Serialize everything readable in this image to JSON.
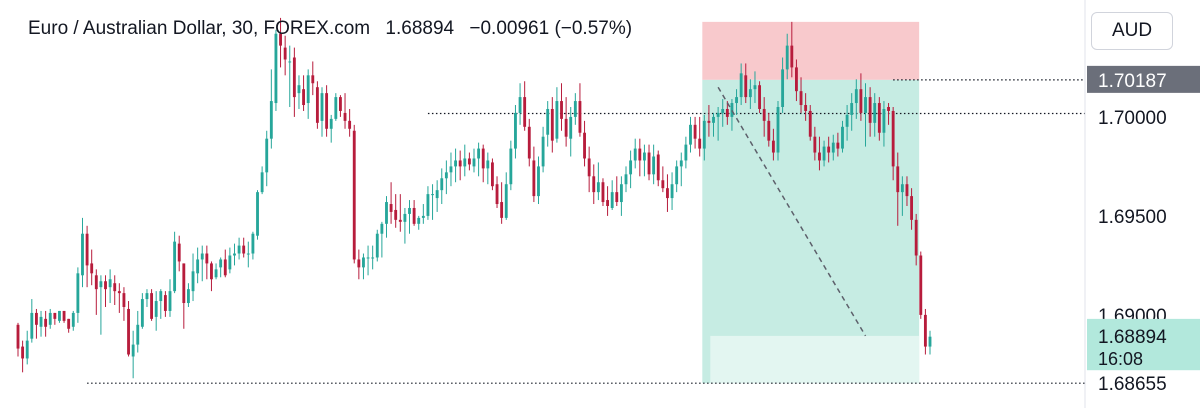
{
  "header": {
    "symbol": "Euro / Australian Dollar, 30, FOREX.com",
    "price": "1.68894",
    "change": "−0.00961 (−0.57%)"
  },
  "currency_button": "AUD",
  "colors": {
    "up": "#26a69a",
    "down": "#b71c3c",
    "stop_zone": "#f8c9cc",
    "target_zone": "#c6ece3",
    "tag_dark": "#6b6f7a",
    "tag_current": "#b2e8dc"
  },
  "chart_data": {
    "type": "candlestick",
    "timeframe": "30",
    "y_ticks": [
      1.7,
      1.695,
      1.69
    ],
    "y_tick_labels": [
      "1.70000",
      "1.69500",
      "1.69000"
    ],
    "ylim": [
      1.6855,
      1.7055
    ],
    "price_tags": [
      {
        "label": "1.70187",
        "value": 1.70187,
        "style": "dark"
      },
      {
        "label": "1.68894",
        "value": 1.68894,
        "style": "current",
        "countdown": "16:08"
      },
      {
        "label": "1.68655",
        "value": 1.68655,
        "style": "plain"
      }
    ],
    "horizontal_lines": [
      {
        "value": 1.70017,
        "from_index": 89
      },
      {
        "value": 1.68655,
        "from_index": 15
      },
      {
        "value": 1.70187,
        "from_index": 190
      }
    ],
    "position": {
      "type": "short",
      "start_index": 149,
      "end_index": 190,
      "entry": 1.70187,
      "stop": 1.7048,
      "target": 1.68655,
      "current": 1.68894
    },
    "trend_line": {
      "from_index": 152,
      "from_value": 1.7015,
      "to_index": 184,
      "to_value": 1.68894
    },
    "ohlc": [
      [
        1.6895,
        1.6896,
        1.6879,
        1.6883
      ],
      [
        1.6884,
        1.6887,
        1.6871,
        1.6878
      ],
      [
        1.6878,
        1.6892,
        1.6875,
        1.6887
      ],
      [
        1.6888,
        1.6908,
        1.6886,
        1.6901
      ],
      [
        1.6901,
        1.6903,
        1.6888,
        1.6895
      ],
      [
        1.6894,
        1.6902,
        1.6889,
        1.6899
      ],
      [
        1.6898,
        1.6902,
        1.6889,
        1.6894
      ],
      [
        1.6895,
        1.6903,
        1.6893,
        1.6901
      ],
      [
        1.6901,
        1.6901,
        1.6895,
        1.6898
      ],
      [
        1.6897,
        1.6902,
        1.6896,
        1.6902
      ],
      [
        1.6902,
        1.6902,
        1.6896,
        1.6897
      ],
      [
        1.6898,
        1.6898,
        1.6891,
        1.6893
      ],
      [
        1.6894,
        1.6902,
        1.6892,
        1.6901
      ],
      [
        1.6901,
        1.6924,
        1.6896,
        1.6921
      ],
      [
        1.692,
        1.6949,
        1.6914,
        1.6941
      ],
      [
        1.6941,
        1.6945,
        1.6914,
        1.6925
      ],
      [
        1.6926,
        1.6933,
        1.6915,
        1.6921
      ],
      [
        1.692,
        1.6923,
        1.69,
        1.6913
      ],
      [
        1.6914,
        1.692,
        1.689,
        1.6917
      ],
      [
        1.6917,
        1.692,
        1.6904,
        1.6913
      ],
      [
        1.6914,
        1.6923,
        1.6906,
        1.6918
      ],
      [
        1.6916,
        1.692,
        1.6905,
        1.6912
      ],
      [
        1.6912,
        1.6916,
        1.6901,
        1.6911
      ],
      [
        1.6911,
        1.6914,
        1.6897,
        1.6904
      ],
      [
        1.6903,
        1.6907,
        1.6879,
        1.688
      ],
      [
        1.6879,
        1.6892,
        1.6868,
        1.6885
      ],
      [
        1.6885,
        1.6902,
        1.6881,
        1.6895
      ],
      [
        1.6894,
        1.6911,
        1.6893,
        1.6908
      ],
      [
        1.6908,
        1.6913,
        1.6904,
        1.6911
      ],
      [
        1.6911,
        1.6913,
        1.6897,
        1.6898
      ],
      [
        1.6899,
        1.6912,
        1.6892,
        1.6907
      ],
      [
        1.6907,
        1.6913,
        1.6898,
        1.6912
      ],
      [
        1.691,
        1.6912,
        1.6899,
        1.6902
      ],
      [
        1.6902,
        1.6918,
        1.6899,
        1.6912
      ],
      [
        1.6912,
        1.6942,
        1.6911,
        1.6937
      ],
      [
        1.6936,
        1.694,
        1.6922,
        1.6927
      ],
      [
        1.6926,
        1.6926,
        1.6893,
        1.6906
      ],
      [
        1.6906,
        1.6916,
        1.6904,
        1.6913
      ],
      [
        1.6912,
        1.6931,
        1.6907,
        1.6922
      ],
      [
        1.6921,
        1.6934,
        1.6916,
        1.6928
      ],
      [
        1.6928,
        1.6935,
        1.6917,
        1.6931
      ],
      [
        1.6931,
        1.6935,
        1.6918,
        1.6926
      ],
      [
        1.6926,
        1.6927,
        1.6912,
        1.6918
      ],
      [
        1.6919,
        1.6926,
        1.6918,
        1.6923
      ],
      [
        1.6924,
        1.6929,
        1.6919,
        1.6928
      ],
      [
        1.6928,
        1.6933,
        1.6919,
        1.692
      ],
      [
        1.6923,
        1.6934,
        1.6921,
        1.693
      ],
      [
        1.693,
        1.6936,
        1.6925,
        1.6931
      ],
      [
        1.6931,
        1.6939,
        1.6928,
        1.6935
      ],
      [
        1.6935,
        1.6939,
        1.6929,
        1.6931
      ],
      [
        1.6931,
        1.6937,
        1.6924,
        1.6931
      ],
      [
        1.6931,
        1.6942,
        1.6928,
        1.6941
      ],
      [
        1.694,
        1.6963,
        1.6938,
        1.6962
      ],
      [
        1.6962,
        1.6975,
        1.6961,
        1.6972
      ],
      [
        1.6972,
        1.6993,
        1.6965,
        1.6989
      ],
      [
        1.6989,
        1.7024,
        1.6984,
        1.7008
      ],
      [
        1.7007,
        1.7044,
        1.7003,
        1.7042
      ],
      [
        1.7042,
        1.705,
        1.7025,
        1.7036
      ],
      [
        1.7035,
        1.7041,
        1.7021,
        1.7029
      ],
      [
        1.7028,
        1.7036,
        1.7005,
        1.7028
      ],
      [
        1.703,
        1.7035,
        1.7,
        1.701
      ],
      [
        1.7012,
        1.7021,
        1.7004,
        1.7016
      ],
      [
        1.7014,
        1.7021,
        1.7003,
        1.7006
      ],
      [
        1.7007,
        1.7024,
        1.6999,
        1.7021
      ],
      [
        1.7021,
        1.7028,
        1.7011,
        1.7017
      ],
      [
        1.7015,
        1.7018,
        1.6994,
        1.6997
      ],
      [
        1.6998,
        1.7015,
        1.699,
        1.7012
      ],
      [
        1.7012,
        1.7016,
        1.699,
        1.6994
      ],
      [
        1.6994,
        1.7001,
        1.6987,
        1.6999
      ],
      [
        1.6999,
        1.7012,
        1.6998,
        1.701
      ],
      [
        1.701,
        1.7011,
        1.7,
        1.7003
      ],
      [
        1.7002,
        1.7012,
        1.6994,
        1.6998
      ],
      [
        1.6998,
        1.7004,
        1.699,
        1.6994
      ],
      [
        1.6993,
        1.6996,
        1.6926,
        1.6928
      ],
      [
        1.6928,
        1.6933,
        1.6918,
        1.6924
      ],
      [
        1.6924,
        1.6931,
        1.6918,
        1.6929
      ],
      [
        1.6929,
        1.6935,
        1.692,
        1.6929
      ],
      [
        1.6929,
        1.6935,
        1.6923,
        1.6929
      ],
      [
        1.6929,
        1.6943,
        1.6927,
        1.6941
      ],
      [
        1.6941,
        1.6947,
        1.6929,
        1.6946
      ],
      [
        1.6946,
        1.696,
        1.6939,
        1.6957
      ],
      [
        1.6956,
        1.6967,
        1.6946,
        1.6952
      ],
      [
        1.6953,
        1.6961,
        1.6944,
        1.6948
      ],
      [
        1.6948,
        1.6961,
        1.6942,
        1.6947
      ],
      [
        1.6947,
        1.6954,
        1.6936,
        1.6951
      ],
      [
        1.6951,
        1.6958,
        1.6941,
        1.6954
      ],
      [
        1.6954,
        1.6958,
        1.6945,
        1.6946
      ],
      [
        1.6946,
        1.695,
        1.6943,
        1.6949
      ],
      [
        1.6949,
        1.6956,
        1.6946,
        1.695
      ],
      [
        1.695,
        1.6965,
        1.6948,
        1.6961
      ],
      [
        1.6961,
        1.6966,
        1.6948,
        1.6961
      ],
      [
        1.6959,
        1.6968,
        1.6952,
        1.6963
      ],
      [
        1.6963,
        1.6974,
        1.6956,
        1.6969
      ],
      [
        1.6969,
        1.6978,
        1.6961,
        1.6972
      ],
      [
        1.6972,
        1.6982,
        1.6965,
        1.6975
      ],
      [
        1.6975,
        1.6984,
        1.6967,
        1.6978
      ],
      [
        1.6978,
        1.6983,
        1.6968,
        1.6975
      ],
      [
        1.6975,
        1.6986,
        1.697,
        1.6979
      ],
      [
        1.6979,
        1.6982,
        1.6973,
        1.6976
      ],
      [
        1.6975,
        1.6984,
        1.6972,
        1.6979
      ],
      [
        1.6979,
        1.6987,
        1.697,
        1.6984
      ],
      [
        1.6984,
        1.6986,
        1.6967,
        1.6974
      ],
      [
        1.6974,
        1.6982,
        1.6966,
        1.6978
      ],
      [
        1.6977,
        1.6979,
        1.6963,
        1.6965
      ],
      [
        1.6966,
        1.697,
        1.6954,
        1.6956
      ],
      [
        1.6957,
        1.6967,
        1.6946,
        1.6949
      ],
      [
        1.6949,
        1.6972,
        1.6948,
        1.6966
      ],
      [
        1.6966,
        1.6988,
        1.6963,
        1.6984
      ],
      [
        1.6984,
        1.7006,
        1.6979,
        1.7002
      ],
      [
        1.7002,
        1.7017,
        1.6996,
        1.701
      ],
      [
        1.701,
        1.7018,
        1.6993,
        1.6995
      ],
      [
        1.6995,
        1.6999,
        1.6975,
        1.6979
      ],
      [
        1.6978,
        1.6985,
        1.6957,
        1.696
      ],
      [
        1.696,
        1.698,
        1.6956,
        1.6975
      ],
      [
        1.6975,
        1.6995,
        1.6972,
        1.699
      ],
      [
        1.6991,
        1.7008,
        1.6985,
        1.7004
      ],
      [
        1.7004,
        1.701,
        1.6982,
        1.6988
      ],
      [
        1.6989,
        1.7015,
        1.6987,
        1.7008
      ],
      [
        1.7008,
        1.7017,
        1.6993,
        1.6999
      ],
      [
        1.6999,
        1.701,
        1.6985,
        1.699
      ],
      [
        1.6989,
        1.7005,
        1.698,
        1.7
      ],
      [
        1.7,
        1.7012,
        1.6996,
        1.7008
      ],
      [
        1.7008,
        1.7017,
        1.699,
        1.6992
      ],
      [
        1.6992,
        1.6998,
        1.6975,
        1.6979
      ],
      [
        1.6979,
        1.6985,
        1.6962,
        1.697
      ],
      [
        1.697,
        1.6976,
        1.6956,
        1.6962
      ],
      [
        1.6962,
        1.6977,
        1.6958,
        1.6967
      ],
      [
        1.6967,
        1.6969,
        1.6955,
        1.6957
      ],
      [
        1.6958,
        1.6965,
        1.695,
        1.6955
      ],
      [
        1.6954,
        1.6968,
        1.6953,
        1.6962
      ],
      [
        1.6962,
        1.697,
        1.6955,
        1.6957
      ],
      [
        1.6957,
        1.697,
        1.695,
        1.6966
      ],
      [
        1.6966,
        1.6975,
        1.6962,
        1.6971
      ],
      [
        1.6971,
        1.6983,
        1.6964,
        1.6978
      ],
      [
        1.6978,
        1.6989,
        1.6974,
        1.6984
      ],
      [
        1.6984,
        1.6989,
        1.697,
        1.6978
      ],
      [
        1.6978,
        1.6986,
        1.697,
        1.6982
      ],
      [
        1.6982,
        1.6986,
        1.6968,
        1.6971
      ],
      [
        1.6971,
        1.6986,
        1.6966,
        1.698
      ],
      [
        1.6981,
        1.6983,
        1.6965,
        1.6968
      ],
      [
        1.6968,
        1.6975,
        1.6962,
        1.6964
      ],
      [
        1.6964,
        1.6971,
        1.6952,
        1.6959
      ],
      [
        1.6959,
        1.6972,
        1.6953,
        1.6966
      ],
      [
        1.6966,
        1.6978,
        1.6962,
        1.6975
      ],
      [
        1.6975,
        1.6982,
        1.6965,
        1.6978
      ],
      [
        1.6978,
        1.699,
        1.6974,
        1.6986
      ],
      [
        1.6986,
        1.7,
        1.6982,
        1.6996
      ],
      [
        1.6996,
        1.7,
        1.6984,
        1.6989
      ],
      [
        1.6989,
        1.7,
        1.698,
        1.6984
      ],
      [
        1.6984,
        1.7001,
        1.6978,
        1.6998
      ],
      [
        1.6998,
        1.7006,
        1.699,
        1.6997
      ],
      [
        1.6997,
        1.7002,
        1.699,
        1.7
      ],
      [
        1.7,
        1.7005,
        1.6988,
        1.7002
      ],
      [
        1.7002,
        1.7009,
        1.6995,
        1.7004
      ],
      [
        1.7004,
        1.7008,
        1.6996,
        1.7
      ],
      [
        1.7,
        1.7009,
        1.6993,
        1.7007
      ],
      [
        1.7007,
        1.7014,
        1.7001,
        1.701
      ],
      [
        1.701,
        1.7027,
        1.7006,
        1.7022
      ],
      [
        1.7021,
        1.7027,
        1.7007,
        1.701
      ],
      [
        1.701,
        1.7019,
        1.7004,
        1.7014
      ],
      [
        1.7014,
        1.7023,
        1.7007,
        1.7016
      ],
      [
        1.7016,
        1.7018,
        1.7002,
        1.7004
      ],
      [
        1.7004,
        1.701,
        1.699,
        1.6998
      ],
      [
        1.6998,
        1.7002,
        1.6985,
        1.6988
      ],
      [
        1.6988,
        1.6994,
        1.6978,
        1.6982
      ],
      [
        1.6982,
        1.7008,
        1.6978,
        1.7005
      ],
      [
        1.7005,
        1.703,
        1.7002,
        1.7024
      ],
      [
        1.7024,
        1.7042,
        1.7019,
        1.7036
      ],
      [
        1.7036,
        1.7048,
        1.702,
        1.7025
      ],
      [
        1.7025,
        1.7029,
        1.7008,
        1.7013
      ],
      [
        1.7013,
        1.702,
        1.7002,
        1.7006
      ],
      [
        1.7006,
        1.7012,
        1.6998,
        1.7003
      ],
      [
        1.7003,
        1.7006,
        1.6988,
        1.699
      ],
      [
        1.699,
        1.6995,
        1.6978,
        1.6982
      ],
      [
        1.6982,
        1.699,
        1.6973,
        1.6978
      ],
      [
        1.6978,
        1.6988,
        1.6975,
        1.6985
      ],
      [
        1.6985,
        1.699,
        1.6977,
        1.6982
      ],
      [
        1.6982,
        1.6991,
        1.6978,
        1.6987
      ],
      [
        1.6987,
        1.6992,
        1.698,
        1.6984
      ],
      [
        1.6984,
        1.6998,
        1.6982,
        1.6995
      ],
      [
        1.6995,
        1.7006,
        1.6988,
        1.7001
      ],
      [
        1.7001,
        1.7012,
        1.6993,
        1.7007
      ],
      [
        1.7007,
        1.7019,
        1.6999,
        1.7014
      ],
      [
        1.7014,
        1.7022,
        1.6998,
        1.7002
      ],
      [
        1.7002,
        1.7017,
        1.6985,
        1.701
      ],
      [
        1.701,
        1.7015,
        1.699,
        1.6997
      ],
      [
        1.6997,
        1.7012,
        1.699,
        1.7007
      ],
      [
        1.7007,
        1.701,
        1.6988,
        1.6992
      ],
      [
        1.6992,
        1.7008,
        1.6985,
        1.7004
      ],
      [
        1.7005,
        1.7007,
        1.6996,
        1.7003
      ],
      [
        1.7003,
        1.7005,
        1.6968,
        1.6975
      ],
      [
        1.6975,
        1.6982,
        1.6945,
        1.6962
      ],
      [
        1.6962,
        1.697,
        1.695,
        1.6966
      ],
      [
        1.6966,
        1.697,
        1.6955,
        1.696
      ],
      [
        1.696,
        1.6964,
        1.6943,
        1.6948
      ],
      [
        1.6948,
        1.6951,
        1.6925,
        1.693
      ],
      [
        1.693,
        1.6932,
        1.6898,
        1.69
      ],
      [
        1.69,
        1.6903,
        1.688,
        1.6884
      ],
      [
        1.6884,
        1.6892,
        1.688,
        1.6889
      ]
    ]
  }
}
